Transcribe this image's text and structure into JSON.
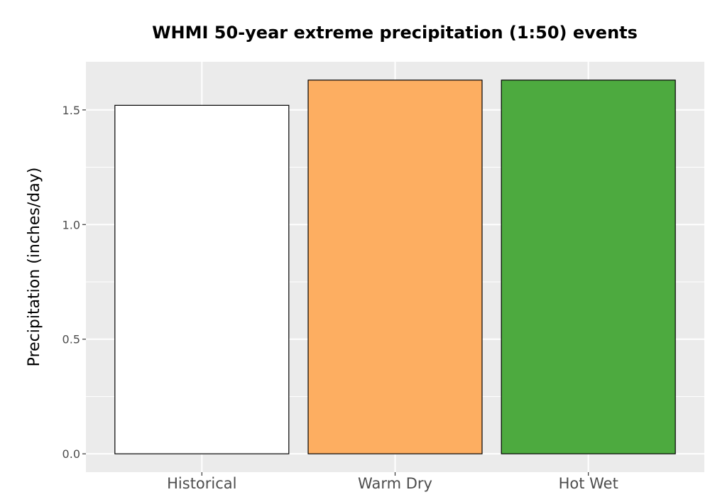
{
  "chart_data": {
    "type": "bar",
    "title": "WHMI 50-year extreme precipitation (1:50) events",
    "xlabel": "",
    "ylabel": "Precipitation (inches/day)",
    "categories": [
      "Historical",
      "Warm Dry",
      "Hot Wet"
    ],
    "values": [
      1.52,
      1.63,
      1.63
    ],
    "bar_colors": [
      "#ffffff",
      "#fdae61",
      "#4daa3f"
    ],
    "bar_outline_color": "#000000",
    "panel_background": "#ebebeb",
    "gridline_color": "#ffffff",
    "y_ticks": [
      0.0,
      0.5,
      1.0,
      1.5
    ],
    "y_tick_labels": [
      "0.0",
      "0.5",
      "1.0",
      "1.5"
    ],
    "ylim": [
      -0.08,
      1.71
    ],
    "grid": true,
    "legend": "none"
  }
}
